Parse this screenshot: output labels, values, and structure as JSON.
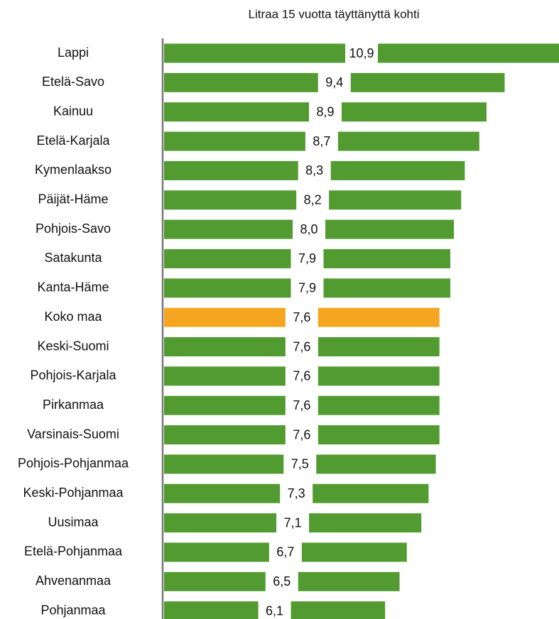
{
  "chart_data": {
    "type": "bar",
    "orientation": "horizontal",
    "title": "Litraa 15 vuotta täyttänyttä kohti",
    "categories": [
      "Lappi",
      "Etelä-Savo",
      "Kainuu",
      "Etelä-Karjala",
      "Kymenlaakso",
      "Päijät-Häme",
      "Pohjois-Savo",
      "Satakunta",
      "Kanta-Häme",
      "Koko maa",
      "Keski-Suomi",
      "Pohjois-Karjala",
      "Pirkanmaa",
      "Varsinais-Suomi",
      "Pohjois-Pohjanmaa",
      "Keski-Pohjanmaa",
      "Uusimaa",
      "Etelä-Pohjanmaa",
      "Ahvenanmaa",
      "Pohjanmaa"
    ],
    "values": [
      10.9,
      9.4,
      8.9,
      8.7,
      8.3,
      8.2,
      8.0,
      7.9,
      7.9,
      7.6,
      7.6,
      7.6,
      7.6,
      7.6,
      7.5,
      7.3,
      7.1,
      6.7,
      6.5,
      6.1
    ],
    "value_labels": [
      "10,9",
      "9,4",
      "8,9",
      "8,7",
      "8,3",
      "8,2",
      "8,0",
      "7,9",
      "7,9",
      "7,6",
      "7,6",
      "7,6",
      "7,6",
      "7,6",
      "7,5",
      "7,3",
      "7,1",
      "6,7",
      "6,5",
      "6,1"
    ],
    "colors": [
      "#529b30",
      "#529b30",
      "#529b30",
      "#529b30",
      "#529b30",
      "#529b30",
      "#529b30",
      "#529b30",
      "#529b30",
      "#f5a51f",
      "#529b30",
      "#529b30",
      "#529b30",
      "#529b30",
      "#529b30",
      "#529b30",
      "#529b30",
      "#529b30",
      "#529b30",
      "#529b30"
    ]
  }
}
